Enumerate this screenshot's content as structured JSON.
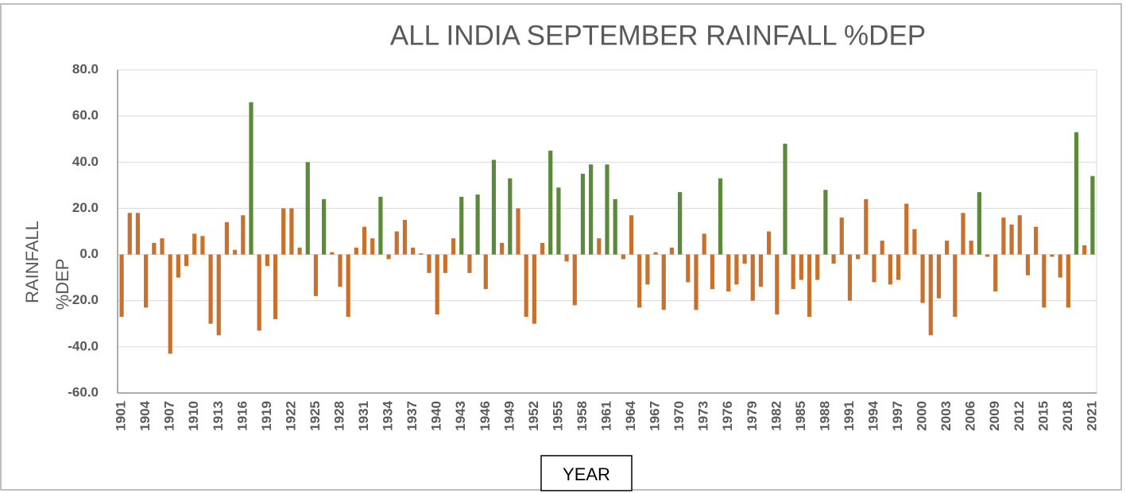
{
  "chart_data": {
    "type": "bar",
    "title": "ALL INDIA SEPTEMBER RAINFALL %DEP",
    "ylabel": [
      "RAINFALL",
      "%DEP"
    ],
    "xlabel": "YEAR",
    "categories": [
      "1901",
      null,
      null,
      "1904",
      null,
      null,
      "1907",
      null,
      null,
      "1910",
      null,
      null,
      "1913",
      null,
      null,
      "1916",
      null,
      null,
      "1919",
      null,
      null,
      "1922",
      null,
      null,
      "1925",
      null,
      null,
      "1928",
      null,
      null,
      "1931",
      null,
      null,
      "1934",
      null,
      null,
      "1937",
      null,
      null,
      "1940",
      null,
      null,
      "1943",
      null,
      null,
      "1946",
      null,
      null,
      "1949",
      null,
      null,
      "1952",
      null,
      null,
      "1955",
      null,
      null,
      "1958",
      null,
      null,
      "1961",
      null,
      null,
      "1964",
      null,
      null,
      "1967",
      null,
      null,
      "1970",
      null,
      null,
      "1973",
      null,
      null,
      "1976",
      null,
      null,
      "1979",
      null,
      null,
      "1982",
      null,
      null,
      "1985",
      null,
      null,
      "1988",
      null,
      null,
      "1991",
      null,
      null,
      "1994",
      null,
      null,
      "1997",
      null,
      null,
      "2000",
      null,
      null,
      "2003",
      null,
      null,
      "2006",
      null,
      null,
      "2009",
      null,
      null,
      "2012",
      null,
      null,
      "2015",
      null,
      null,
      "2018",
      null,
      null,
      "2021"
    ],
    "values": [
      -27,
      18,
      18,
      -23,
      5,
      7,
      -43,
      -10,
      -5,
      9,
      8,
      -30,
      -35,
      14,
      2,
      17,
      66,
      -33,
      -5,
      -28,
      20,
      20,
      3,
      40,
      -18,
      24,
      1,
      -14,
      -27,
      3,
      12,
      7,
      25,
      -2,
      10,
      15,
      3,
      0.5,
      -8,
      -26,
      -8,
      7,
      25,
      -8,
      26,
      -15,
      41,
      5,
      33,
      20,
      -27,
      -30,
      5,
      45,
      29,
      -3,
      -22,
      35,
      39,
      7,
      39,
      24,
      -2,
      17,
      -23,
      -13,
      1,
      -24,
      3,
      27,
      -12,
      -24,
      9,
      -15,
      33,
      -16,
      -13,
      -4,
      -20,
      -14,
      10,
      -26,
      48,
      -15,
      -11,
      -27,
      -11,
      28,
      -4,
      16,
      -20,
      -2,
      24,
      -12,
      6,
      -13,
      -11,
      22,
      11,
      -21,
      -35,
      -19,
      6,
      -27,
      18,
      6,
      27,
      -1,
      -16,
      16,
      13,
      17,
      -9,
      12,
      -23,
      -1,
      -10,
      -23,
      53,
      4,
      34
    ],
    "colors": [
      "#c8702c",
      "#c8702c",
      "#c8702c",
      "#c8702c",
      "#c8702c",
      "#c8702c",
      "#c8702c",
      "#c8702c",
      "#c8702c",
      "#c8702c",
      "#c8702c",
      "#c8702c",
      "#c8702c",
      "#c8702c",
      "#c8702c",
      "#c8702c",
      "#5a8a3a",
      "#c8702c",
      "#c8702c",
      "#c8702c",
      "#c8702c",
      "#c8702c",
      "#c8702c",
      "#5a8a3a",
      "#c8702c",
      "#5a8a3a",
      "#c8702c",
      "#c8702c",
      "#c8702c",
      "#c8702c",
      "#c8702c",
      "#c8702c",
      "#5a8a3a",
      "#c8702c",
      "#c8702c",
      "#c8702c",
      "#c8702c",
      "#c8702c",
      "#c8702c",
      "#c8702c",
      "#c8702c",
      "#c8702c",
      "#5a8a3a",
      "#c8702c",
      "#5a8a3a",
      "#c8702c",
      "#5a8a3a",
      "#c8702c",
      "#5a8a3a",
      "#c8702c",
      "#c8702c",
      "#c8702c",
      "#c8702c",
      "#5a8a3a",
      "#5a8a3a",
      "#c8702c",
      "#c8702c",
      "#5a8a3a",
      "#5a8a3a",
      "#c8702c",
      "#5a8a3a",
      "#5a8a3a",
      "#c8702c",
      "#c8702c",
      "#c8702c",
      "#c8702c",
      "#c8702c",
      "#c8702c",
      "#c8702c",
      "#5a8a3a",
      "#c8702c",
      "#c8702c",
      "#c8702c",
      "#c8702c",
      "#5a8a3a",
      "#c8702c",
      "#c8702c",
      "#c8702c",
      "#c8702c",
      "#c8702c",
      "#c8702c",
      "#c8702c",
      "#5a8a3a",
      "#c8702c",
      "#c8702c",
      "#c8702c",
      "#c8702c",
      "#5a8a3a",
      "#c8702c",
      "#c8702c",
      "#c8702c",
      "#c8702c",
      "#c8702c",
      "#c8702c",
      "#c8702c",
      "#c8702c",
      "#c8702c",
      "#c8702c",
      "#c8702c",
      "#c8702c",
      "#c8702c",
      "#c8702c",
      "#c8702c",
      "#c8702c",
      "#c8702c",
      "#c8702c",
      "#5a8a3a",
      "#c8702c",
      "#c8702c",
      "#c8702c",
      "#c8702c",
      "#c8702c",
      "#c8702c",
      "#c8702c",
      "#c8702c",
      "#c8702c",
      "#c8702c",
      "#c8702c",
      "#5a8a3a",
      "#c8702c",
      "#5a8a3a"
    ],
    "ylim": [
      -60,
      80
    ],
    "yticks": [
      {
        "value": -60,
        "label": "-60.0"
      },
      {
        "value": -40,
        "label": "-40.0"
      },
      {
        "value": -20,
        "label": "-20.0"
      },
      {
        "value": 0,
        "label": "0.0"
      },
      {
        "value": 20,
        "label": "20.0"
      },
      {
        "value": 40,
        "label": "40.0"
      },
      {
        "value": 60,
        "label": "60.0"
      },
      {
        "value": 80,
        "label": "80.0"
      }
    ],
    "grid": true
  }
}
